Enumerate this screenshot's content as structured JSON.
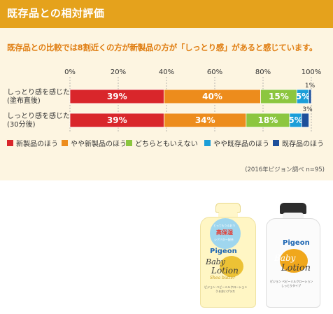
{
  "header": {
    "title": "既存品との相対評価"
  },
  "subtitle": "既存品との比較では8割近くの方が新製品の方が「しっとり感」があると感じています。",
  "chart_data": {
    "type": "bar",
    "orientation": "horizontal",
    "stacked": true,
    "xlim": [
      0,
      100
    ],
    "x_ticks": [
      "0%",
      "20%",
      "40%",
      "60%",
      "80%",
      "100%"
    ],
    "categories": [
      {
        "line1": "しっとり感を感じた",
        "line2": "(塗布直後)"
      },
      {
        "line1": "しっとり感を感じた",
        "line2": "(30分後)"
      }
    ],
    "series": [
      {
        "name": "新製品のほう",
        "color": "#d9262b",
        "values": [
          39,
          39
        ]
      },
      {
        "name": "やや新製品のほう",
        "color": "#ed8c1c",
        "values": [
          40,
          34
        ]
      },
      {
        "name": "どちらともいえない",
        "color": "#8cc63f",
        "values": [
          15,
          18
        ]
      },
      {
        "name": "やや既存品のほう",
        "color": "#1b9ed8",
        "values": [
          5,
          5
        ]
      },
      {
        "name": "既存品のほう",
        "color": "#1d4f9a",
        "values": [
          1,
          3
        ]
      }
    ],
    "data_labels": [
      [
        "39%",
        "40%",
        "15%",
        "5%",
        "1%"
      ],
      [
        "39%",
        "34%",
        "18%",
        "5%",
        "3%"
      ]
    ],
    "legend_position": "bottom",
    "grid": "vertical-dashed"
  },
  "source_note": "(2016年ピジョン調べ n=95)",
  "products": [
    {
      "brand": "Pigeon",
      "name_top": "Baby",
      "name_bottom": "Lotion",
      "badge_line1": "とってもうるおう",
      "badge_line2": "高保湿",
      "badge_line3": "シアバター配合",
      "script": "Shea butter",
      "jp_name": "ピジョン ベビーミルクローション",
      "jp_sub": "うるおいプラス"
    },
    {
      "brand": "Pigeon",
      "name_top": "Baby",
      "name_bottom": "Lotion",
      "jp_name": "ピジョン ベビーミルクローション",
      "jp_sub": "しっとりタイプ"
    }
  ]
}
